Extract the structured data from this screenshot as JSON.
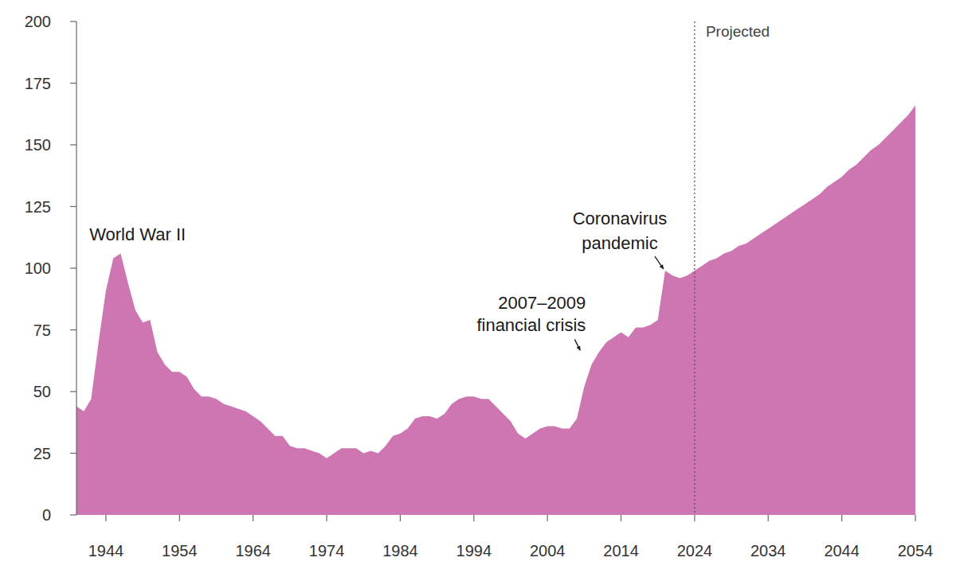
{
  "chart_data": {
    "type": "area",
    "color": "#cd76b1",
    "xlim": [
      1940,
      2054
    ],
    "ylim": [
      0,
      200
    ],
    "xticks": [
      1944,
      1954,
      1964,
      1974,
      1984,
      1994,
      2004,
      2014,
      2024,
      2034,
      2044,
      2054
    ],
    "yticks": [
      0,
      25,
      50,
      75,
      100,
      125,
      150,
      175,
      200
    ],
    "grid": false,
    "projection": {
      "x": 2024,
      "label": "Projected"
    },
    "annotations": [
      {
        "lines": [
          "World War II"
        ],
        "x": 1945,
        "y": 106
      },
      {
        "lines": [
          "2007–2009",
          "financial crisis"
        ],
        "x": 2009,
        "y": 66
      },
      {
        "lines": [
          "Coronavirus",
          "pandemic"
        ],
        "x": 2020,
        "y": 99
      }
    ],
    "x": [
      1940,
      1941,
      1942,
      1943,
      1944,
      1945,
      1946,
      1947,
      1948,
      1949,
      1950,
      1951,
      1952,
      1953,
      1954,
      1955,
      1956,
      1957,
      1958,
      1959,
      1960,
      1961,
      1962,
      1963,
      1964,
      1965,
      1966,
      1967,
      1968,
      1969,
      1970,
      1971,
      1972,
      1973,
      1974,
      1975,
      1976,
      1977,
      1978,
      1979,
      1980,
      1981,
      1982,
      1983,
      1984,
      1985,
      1986,
      1987,
      1988,
      1989,
      1990,
      1991,
      1992,
      1993,
      1994,
      1995,
      1996,
      1997,
      1998,
      1999,
      2000,
      2001,
      2002,
      2003,
      2004,
      2005,
      2006,
      2007,
      2008,
      2009,
      2010,
      2011,
      2012,
      2013,
      2014,
      2015,
      2016,
      2017,
      2018,
      2019,
      2020,
      2021,
      2022,
      2023,
      2024,
      2025,
      2026,
      2027,
      2028,
      2029,
      2030,
      2031,
      2032,
      2033,
      2034,
      2035,
      2036,
      2037,
      2038,
      2039,
      2040,
      2041,
      2042,
      2043,
      2044,
      2045,
      2046,
      2047,
      2048,
      2049,
      2050,
      2051,
      2052,
      2053,
      2054
    ],
    "values": [
      44,
      42,
      47,
      70,
      91,
      104,
      106,
      94,
      83,
      78,
      79,
      66,
      61,
      58,
      58,
      56,
      51,
      48,
      48,
      47,
      45,
      44,
      43,
      42,
      40,
      38,
      35,
      32,
      32,
      28,
      27,
      27,
      26,
      25,
      23,
      25,
      27,
      27,
      27,
      25,
      26,
      25,
      28,
      32,
      33,
      35,
      39,
      40,
      40,
      39,
      41,
      45,
      47,
      48,
      48,
      47,
      47,
      44,
      41,
      38,
      33,
      31,
      33,
      35,
      36,
      36,
      35,
      35,
      39,
      52,
      61,
      66,
      70,
      72,
      74,
      72,
      76,
      76,
      77,
      79,
      99,
      97,
      96,
      97,
      99,
      101,
      103,
      104,
      106,
      107,
      109,
      110,
      112,
      114,
      116,
      118,
      120,
      122,
      124,
      126,
      128,
      130,
      133,
      135,
      137,
      140,
      142,
      145,
      148,
      150,
      153,
      156,
      159,
      162,
      166
    ]
  }
}
